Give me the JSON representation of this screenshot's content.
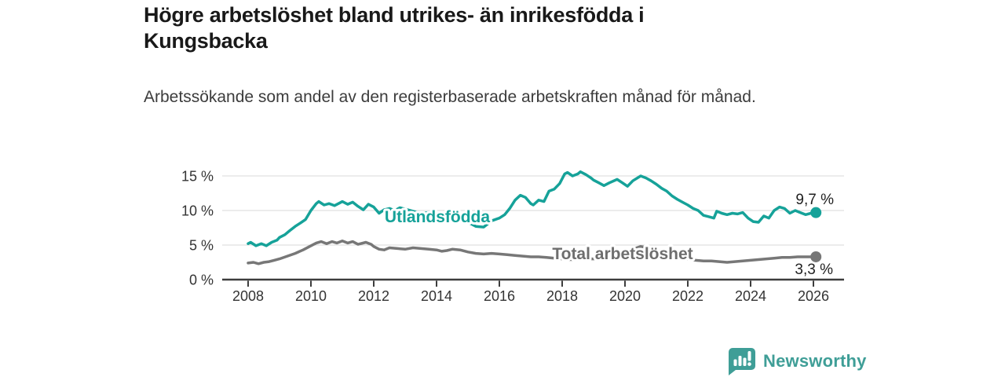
{
  "title": "Högre arbetslöshet bland utrikes- än inrikesfödda i Kungsbacka",
  "subtitle": "Arbetssökande som andel av den registerbaserade arbetskraften månad för månad.",
  "footer": {
    "brand": "Newsworthy",
    "logo_icon": "bar-chart-bubble-icon",
    "brand_color": "#3f9e97"
  },
  "colors": {
    "foreign_born_line": "#16a299",
    "total_line": "#777777",
    "gridline": "#d9d9d9",
    "axis": "#3d3d3d",
    "title_text": "#191919",
    "subtitle_text": "#3c3c3c",
    "tick_text": "#333333"
  },
  "chart_data": {
    "type": "line",
    "title": "Högre arbetslöshet bland utrikes- än inrikesfödda i Kungsbacka",
    "subtitle": "Arbetssökande som andel av den registerbaserade arbetskraften månad för månad.",
    "xlabel": "",
    "ylabel": "",
    "grid": true,
    "legend_position": "inline-labels",
    "x_axis": {
      "ticks": [
        2008,
        2010,
        2012,
        2014,
        2016,
        2018,
        2020,
        2022,
        2024,
        2026
      ],
      "range": [
        2007.2,
        2027.0
      ]
    },
    "y_axis": {
      "ticks": [
        0,
        5,
        10,
        15
      ],
      "tick_labels": [
        "0 %",
        "5 %",
        "10 %",
        "15 %"
      ],
      "range": [
        0,
        16.5
      ],
      "unit": "%"
    },
    "series": [
      {
        "name": "Utlandsfödda",
        "color": "#16a299",
        "end_label": "9,7 %",
        "end_value": 9.7,
        "points": [
          [
            2008.0,
            5.2
          ],
          [
            2008.08,
            5.4
          ],
          [
            2008.25,
            4.9
          ],
          [
            2008.42,
            5.2
          ],
          [
            2008.58,
            4.9
          ],
          [
            2008.75,
            5.4
          ],
          [
            2008.92,
            5.7
          ],
          [
            2009.0,
            6.1
          ],
          [
            2009.17,
            6.5
          ],
          [
            2009.33,
            7.1
          ],
          [
            2009.5,
            7.7
          ],
          [
            2009.67,
            8.2
          ],
          [
            2009.83,
            8.7
          ],
          [
            2010.0,
            10.0
          ],
          [
            2010.17,
            11.0
          ],
          [
            2010.25,
            11.3
          ],
          [
            2010.42,
            10.8
          ],
          [
            2010.58,
            11.0
          ],
          [
            2010.75,
            10.7
          ],
          [
            2010.92,
            11.1
          ],
          [
            2011.0,
            11.3
          ],
          [
            2011.17,
            10.9
          ],
          [
            2011.33,
            11.2
          ],
          [
            2011.5,
            10.6
          ],
          [
            2011.67,
            10.1
          ],
          [
            2011.83,
            10.9
          ],
          [
            2012.0,
            10.5
          ],
          [
            2012.17,
            9.6
          ],
          [
            2012.33,
            10.1
          ],
          [
            2012.5,
            10.3
          ],
          [
            2012.67,
            10.0
          ],
          [
            2012.83,
            10.4
          ],
          [
            2013.0,
            10.2
          ],
          [
            2013.25,
            9.9
          ],
          [
            2013.5,
            9.6
          ],
          [
            2013.75,
            9.7
          ],
          [
            2014.0,
            9.4
          ],
          [
            2014.25,
            9.3
          ],
          [
            2014.5,
            9.0
          ],
          [
            2014.75,
            8.9
          ],
          [
            2015.0,
            8.3
          ],
          [
            2015.25,
            7.7
          ],
          [
            2015.5,
            7.6
          ],
          [
            2015.75,
            8.5
          ],
          [
            2016.0,
            8.9
          ],
          [
            2016.17,
            9.4
          ],
          [
            2016.33,
            10.3
          ],
          [
            2016.5,
            11.5
          ],
          [
            2016.67,
            12.2
          ],
          [
            2016.83,
            11.9
          ],
          [
            2017.0,
            11.0
          ],
          [
            2017.08,
            10.8
          ],
          [
            2017.25,
            11.5
          ],
          [
            2017.42,
            11.3
          ],
          [
            2017.58,
            12.8
          ],
          [
            2017.75,
            13.1
          ],
          [
            2017.92,
            13.9
          ],
          [
            2018.08,
            15.3
          ],
          [
            2018.17,
            15.5
          ],
          [
            2018.33,
            15.0
          ],
          [
            2018.5,
            15.3
          ],
          [
            2018.58,
            15.6
          ],
          [
            2018.75,
            15.2
          ],
          [
            2018.92,
            14.7
          ],
          [
            2019.0,
            14.4
          ],
          [
            2019.17,
            14.0
          ],
          [
            2019.33,
            13.6
          ],
          [
            2019.5,
            14.0
          ],
          [
            2019.75,
            14.5
          ],
          [
            2019.92,
            14.0
          ],
          [
            2020.08,
            13.5
          ],
          [
            2020.25,
            14.3
          ],
          [
            2020.5,
            15.0
          ],
          [
            2020.67,
            14.7
          ],
          [
            2020.83,
            14.3
          ],
          [
            2021.0,
            13.8
          ],
          [
            2021.17,
            13.2
          ],
          [
            2021.33,
            12.8
          ],
          [
            2021.5,
            12.1
          ],
          [
            2021.67,
            11.6
          ],
          [
            2021.83,
            11.2
          ],
          [
            2022.0,
            10.8
          ],
          [
            2022.17,
            10.3
          ],
          [
            2022.33,
            10.0
          ],
          [
            2022.5,
            9.3
          ],
          [
            2022.67,
            9.1
          ],
          [
            2022.83,
            8.9
          ],
          [
            2022.92,
            9.9
          ],
          [
            2023.08,
            9.6
          ],
          [
            2023.25,
            9.4
          ],
          [
            2023.42,
            9.6
          ],
          [
            2023.58,
            9.5
          ],
          [
            2023.75,
            9.7
          ],
          [
            2023.92,
            8.9
          ],
          [
            2024.08,
            8.4
          ],
          [
            2024.25,
            8.3
          ],
          [
            2024.42,
            9.2
          ],
          [
            2024.58,
            8.9
          ],
          [
            2024.75,
            10.0
          ],
          [
            2024.92,
            10.5
          ],
          [
            2025.08,
            10.3
          ],
          [
            2025.25,
            9.6
          ],
          [
            2025.42,
            10.0
          ],
          [
            2025.58,
            9.7
          ],
          [
            2025.75,
            9.4
          ],
          [
            2025.92,
            9.6
          ],
          [
            2026.08,
            9.7
          ]
        ]
      },
      {
        "name": "Total arbetslöshet",
        "color": "#777777",
        "end_label": "3,3 %",
        "end_value": 3.3,
        "points": [
          [
            2008.0,
            2.4
          ],
          [
            2008.17,
            2.5
          ],
          [
            2008.33,
            2.3
          ],
          [
            2008.5,
            2.5
          ],
          [
            2008.67,
            2.6
          ],
          [
            2008.83,
            2.8
          ],
          [
            2009.0,
            3.0
          ],
          [
            2009.25,
            3.4
          ],
          [
            2009.5,
            3.8
          ],
          [
            2009.75,
            4.3
          ],
          [
            2010.0,
            4.9
          ],
          [
            2010.17,
            5.3
          ],
          [
            2010.33,
            5.5
          ],
          [
            2010.5,
            5.2
          ],
          [
            2010.67,
            5.5
          ],
          [
            2010.83,
            5.3
          ],
          [
            2011.0,
            5.6
          ],
          [
            2011.17,
            5.3
          ],
          [
            2011.33,
            5.5
          ],
          [
            2011.5,
            5.1
          ],
          [
            2011.75,
            5.4
          ],
          [
            2011.92,
            5.1
          ],
          [
            2012.0,
            4.8
          ],
          [
            2012.17,
            4.4
          ],
          [
            2012.33,
            4.3
          ],
          [
            2012.5,
            4.6
          ],
          [
            2012.75,
            4.5
          ],
          [
            2013.0,
            4.4
          ],
          [
            2013.25,
            4.6
          ],
          [
            2013.5,
            4.5
          ],
          [
            2013.75,
            4.4
          ],
          [
            2014.0,
            4.3
          ],
          [
            2014.17,
            4.1
          ],
          [
            2014.33,
            4.2
          ],
          [
            2014.5,
            4.4
          ],
          [
            2014.75,
            4.3
          ],
          [
            2015.0,
            4.0
          ],
          [
            2015.25,
            3.8
          ],
          [
            2015.5,
            3.7
          ],
          [
            2015.75,
            3.8
          ],
          [
            2016.0,
            3.7
          ],
          [
            2016.25,
            3.6
          ],
          [
            2016.5,
            3.5
          ],
          [
            2016.75,
            3.4
          ],
          [
            2017.0,
            3.3
          ],
          [
            2017.25,
            3.3
          ],
          [
            2017.5,
            3.2
          ],
          [
            2017.75,
            3.1
          ],
          [
            2018.0,
            3.0
          ],
          [
            2018.25,
            2.9
          ],
          [
            2018.5,
            2.9
          ],
          [
            2018.75,
            3.0
          ],
          [
            2019.0,
            3.0
          ],
          [
            2019.25,
            3.1
          ],
          [
            2019.5,
            3.2
          ],
          [
            2019.75,
            3.4
          ],
          [
            2020.0,
            3.7
          ],
          [
            2020.25,
            4.4
          ],
          [
            2020.5,
            4.8
          ],
          [
            2020.75,
            4.6
          ],
          [
            2021.0,
            4.3
          ],
          [
            2021.25,
            3.9
          ],
          [
            2021.5,
            3.6
          ],
          [
            2021.75,
            3.2
          ],
          [
            2022.0,
            3.0
          ],
          [
            2022.25,
            2.8
          ],
          [
            2022.5,
            2.7
          ],
          [
            2022.75,
            2.7
          ],
          [
            2023.0,
            2.6
          ],
          [
            2023.25,
            2.5
          ],
          [
            2023.5,
            2.6
          ],
          [
            2023.75,
            2.7
          ],
          [
            2024.0,
            2.8
          ],
          [
            2024.25,
            2.9
          ],
          [
            2024.5,
            3.0
          ],
          [
            2024.75,
            3.1
          ],
          [
            2025.0,
            3.2
          ],
          [
            2025.25,
            3.2
          ],
          [
            2025.5,
            3.3
          ],
          [
            2025.75,
            3.3
          ],
          [
            2026.08,
            3.3
          ]
        ]
      }
    ]
  }
}
